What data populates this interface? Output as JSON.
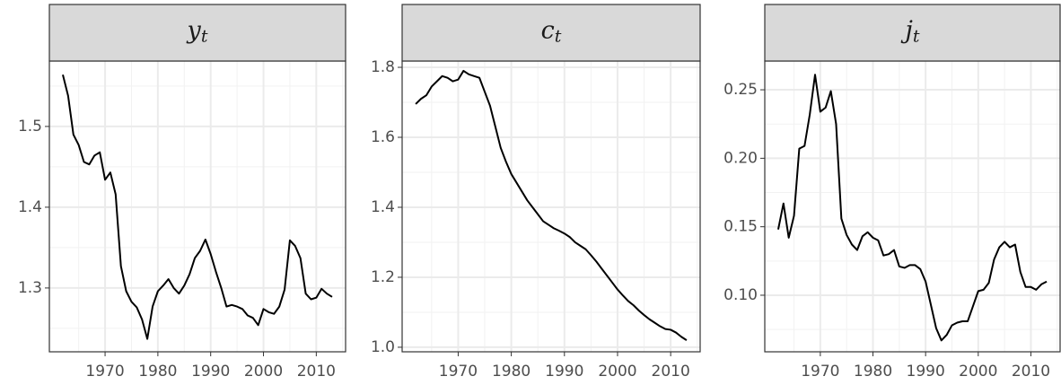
{
  "chart_data": [
    {
      "type": "line",
      "title": "y",
      "title_sub": "t",
      "color": "#000000",
      "x": [
        1962,
        1963,
        1964,
        1965,
        1966,
        1967,
        1968,
        1969,
        1970,
        1971,
        1972,
        1973,
        1974,
        1975,
        1976,
        1977,
        1978,
        1979,
        1980,
        1981,
        1982,
        1983,
        1984,
        1985,
        1986,
        1987,
        1988,
        1989,
        1990,
        1991,
        1992,
        1993,
        1994,
        1995,
        1996,
        1997,
        1998,
        1999,
        2000,
        2001,
        2002,
        2003,
        2004,
        2005,
        2006,
        2007,
        2008,
        2009,
        2010,
        2011,
        2012,
        2013
      ],
      "values": [
        1.564,
        1.538,
        1.49,
        1.477,
        1.456,
        1.453,
        1.464,
        1.468,
        1.434,
        1.443,
        1.416,
        1.327,
        1.296,
        1.283,
        1.276,
        1.261,
        1.237,
        1.277,
        1.296,
        1.303,
        1.311,
        1.3,
        1.293,
        1.303,
        1.317,
        1.337,
        1.346,
        1.36,
        1.342,
        1.32,
        1.3,
        1.277,
        1.279,
        1.277,
        1.274,
        1.266,
        1.263,
        1.254,
        1.274,
        1.27,
        1.268,
        1.277,
        1.298,
        1.359,
        1.352,
        1.337,
        1.293,
        1.286,
        1.288,
        1.299,
        1.293,
        1.289
      ],
      "xlim": [
        1959.45,
        2015.55
      ],
      "xticks": [
        1970,
        1980,
        1990,
        2000,
        2010
      ],
      "xminor": [
        1965,
        1975,
        1985,
        1995,
        2005,
        2015
      ],
      "ylim": [
        1.221,
        1.581
      ],
      "yticks": [
        1.3,
        1.4,
        1.5
      ],
      "yminor": [
        1.25,
        1.35,
        1.45,
        1.55
      ],
      "grid": true
    },
    {
      "type": "line",
      "title": "c",
      "title_sub": "t",
      "color": "#000000",
      "x": [
        1962,
        1963,
        1964,
        1965,
        1966,
        1967,
        1968,
        1969,
        1970,
        1971,
        1972,
        1973,
        1974,
        1975,
        1976,
        1977,
        1978,
        1979,
        1980,
        1981,
        1982,
        1983,
        1984,
        1985,
        1986,
        1987,
        1988,
        1989,
        1990,
        1991,
        1992,
        1993,
        1994,
        1995,
        1996,
        1997,
        1998,
        1999,
        2000,
        2001,
        2002,
        2003,
        2004,
        2005,
        2006,
        2007,
        2008,
        2009,
        2010,
        2011,
        2012,
        2013
      ],
      "values": [
        1.695,
        1.71,
        1.72,
        1.745,
        1.76,
        1.775,
        1.77,
        1.76,
        1.765,
        1.79,
        1.78,
        1.775,
        1.77,
        1.73,
        1.69,
        1.63,
        1.57,
        1.53,
        1.495,
        1.47,
        1.445,
        1.42,
        1.4,
        1.38,
        1.36,
        1.35,
        1.34,
        1.333,
        1.325,
        1.315,
        1.3,
        1.29,
        1.28,
        1.263,
        1.245,
        1.225,
        1.205,
        1.185,
        1.165,
        1.148,
        1.132,
        1.12,
        1.105,
        1.092,
        1.08,
        1.07,
        1.06,
        1.052,
        1.05,
        1.042,
        1.03,
        1.02
      ],
      "xlim": [
        1959.45,
        2015.55
      ],
      "xticks": [
        1970,
        1980,
        1990,
        2000,
        2010
      ],
      "xminor": [
        1965,
        1975,
        1985,
        1995,
        2005,
        2015
      ],
      "ylim": [
        0.987,
        1.818
      ],
      "yticks": [
        {
          "value": 1,
          "label": "1.0"
        },
        1.2,
        1.4,
        1.6,
        1.8
      ],
      "yminor": [
        1.1,
        1.3,
        1.5,
        1.7
      ],
      "grid": true
    },
    {
      "type": "line",
      "title": "j",
      "title_sub": "t",
      "color": "#000000",
      "x": [
        1962,
        1963,
        1964,
        1965,
        1966,
        1967,
        1968,
        1969,
        1970,
        1971,
        1972,
        1973,
        1974,
        1975,
        1976,
        1977,
        1978,
        1979,
        1980,
        1981,
        1982,
        1983,
        1984,
        1985,
        1986,
        1987,
        1988,
        1989,
        1990,
        1991,
        1992,
        1993,
        1994,
        1995,
        1996,
        1997,
        1998,
        1999,
        2000,
        2001,
        2002,
        2003,
        2004,
        2005,
        2006,
        2007,
        2008,
        2009,
        2010,
        2011,
        2012,
        2013
      ],
      "values": [
        0.148,
        0.167,
        0.142,
        0.158,
        0.207,
        0.209,
        0.232,
        0.261,
        0.234,
        0.237,
        0.249,
        0.225,
        0.156,
        0.144,
        0.137,
        0.133,
        0.143,
        0.146,
        0.142,
        0.14,
        0.129,
        0.13,
        0.133,
        0.121,
        0.12,
        0.122,
        0.122,
        0.119,
        0.11,
        0.093,
        0.076,
        0.067,
        0.071,
        0.078,
        0.08,
        0.081,
        0.081,
        0.092,
        0.103,
        0.104,
        0.109,
        0.126,
        0.135,
        0.139,
        0.135,
        0.137,
        0.117,
        0.106,
        0.106,
        0.104,
        0.108,
        0.11
      ],
      "xlim": [
        1959.45,
        2015.55
      ],
      "xticks": [
        1970,
        1980,
        1990,
        2000,
        2010
      ],
      "xminor": [
        1965,
        1975,
        1985,
        1995,
        2005,
        2015
      ],
      "ylim": [
        0.0587,
        0.271
      ],
      "yticks": [
        {
          "value": 0.1,
          "label": "0.10"
        },
        0.15,
        {
          "value": 0.2,
          "label": "0.20"
        },
        0.25
      ],
      "yminor": [
        0.075,
        0.125,
        0.175,
        0.225
      ],
      "grid": true
    }
  ]
}
